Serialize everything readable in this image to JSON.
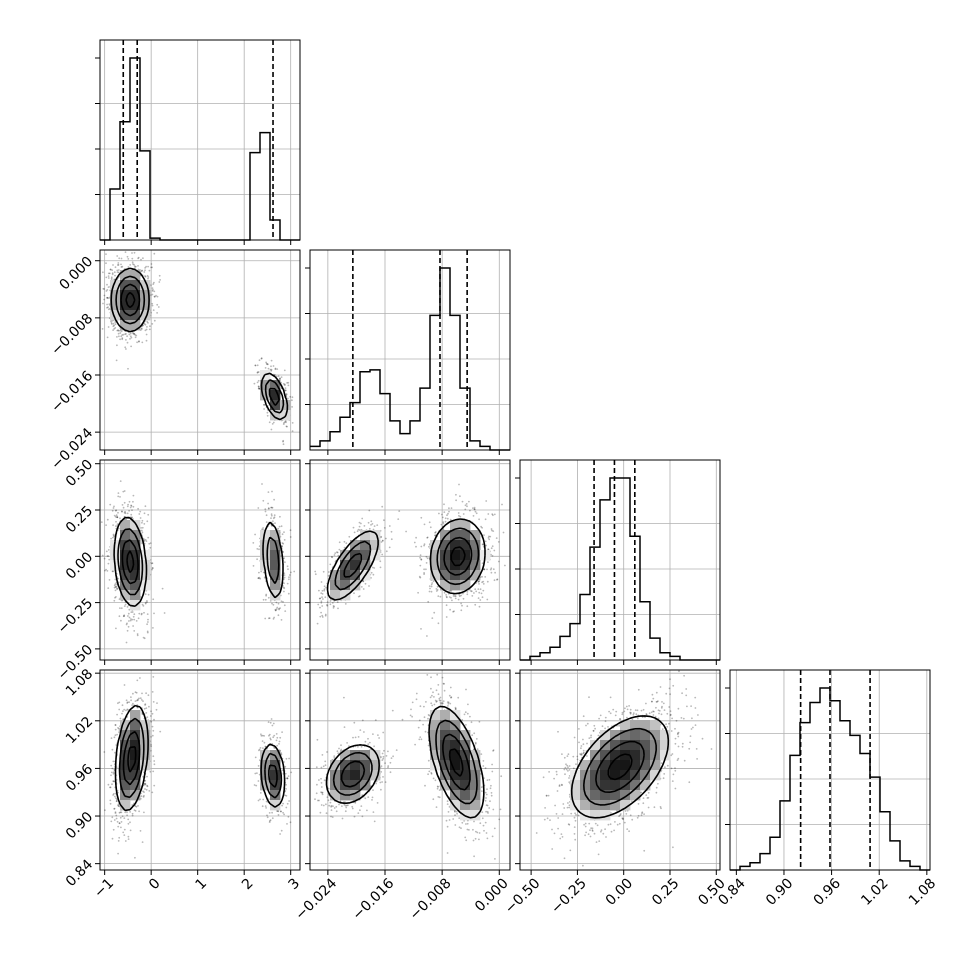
{
  "chart_data": {
    "type": "corner",
    "n_params": 4,
    "axes": [
      {
        "range": [
          -1.1,
          3.2
        ],
        "ticks": [
          -1,
          0,
          1,
          2,
          3
        ],
        "tick_labels": [
          "−1",
          "0",
          "1",
          "2",
          "3"
        ]
      },
      {
        "range": [
          -0.0265,
          0.0015
        ],
        "ticks": [
          -0.024,
          -0.016,
          -0.008,
          0.0
        ],
        "tick_labels": [
          "−0.024",
          "−0.016",
          "−0.008",
          "0.000"
        ]
      },
      {
        "range": [
          -0.56,
          0.52
        ],
        "ticks": [
          -0.5,
          -0.25,
          0.0,
          0.25,
          0.5
        ],
        "tick_labels": [
          "−0.50",
          "−0.25",
          "0.00",
          "0.25",
          "0.50"
        ]
      },
      {
        "range": [
          0.832,
          1.084
        ],
        "ticks": [
          0.84,
          0.9,
          0.96,
          1.02,
          1.08
        ],
        "tick_labels": [
          "0.84",
          "0.90",
          "0.96",
          "1.02",
          "1.08"
        ]
      }
    ],
    "histograms": [
      {
        "bin_start": -1.1,
        "bin_width": 0.215,
        "counts": [
          0.0,
          0.28,
          0.65,
          1.0,
          0.49,
          0.01,
          0,
          0,
          0,
          0,
          0,
          0,
          0,
          0,
          0,
          0.48,
          0.59,
          0.11,
          0.0,
          0.0
        ],
        "quantiles": [
          -0.6,
          -0.3,
          2.62
        ]
      },
      {
        "bin_start": -0.0265,
        "bin_width": 0.0014,
        "counts": [
          0.02,
          0.05,
          0.1,
          0.18,
          0.26,
          0.43,
          0.44,
          0.31,
          0.16,
          0.09,
          0.16,
          0.34,
          0.74,
          1.0,
          0.74,
          0.34,
          0.05,
          0.02,
          0.0,
          0.0
        ],
        "quantiles": [
          -0.0205,
          -0.0083,
          -0.0045
        ]
      },
      {
        "bin_start": -0.56,
        "bin_width": 0.054,
        "counts": [
          0.0,
          0.02,
          0.04,
          0.07,
          0.13,
          0.2,
          0.36,
          0.62,
          0.88,
          1.0,
          1.0,
          0.68,
          0.32,
          0.12,
          0.04,
          0.02,
          0.0,
          0.0,
          0.0,
          0.0
        ],
        "quantiles": [
          -0.16,
          -0.05,
          0.06
        ]
      },
      {
        "bin_start": 0.832,
        "bin_width": 0.0126,
        "counts": [
          0.0,
          0.02,
          0.04,
          0.09,
          0.18,
          0.38,
          0.63,
          0.81,
          0.92,
          1.0,
          0.93,
          0.82,
          0.74,
          0.64,
          0.51,
          0.32,
          0.16,
          0.05,
          0.02,
          0.0
        ],
        "quantiles": [
          0.921,
          0.958,
          1.0085
        ]
      }
    ],
    "pair_panels": [
      {
        "x": 0,
        "y": 1,
        "clusters": [
          {
            "cx": -0.45,
            "cy": -0.0055,
            "sx": 0.2,
            "sy": 0.0022,
            "rho": 0.0,
            "weight": 0.72
          },
          {
            "cx": 2.65,
            "cy": -0.019,
            "sx": 0.14,
            "sy": 0.0017,
            "rho": -0.5,
            "weight": 0.28
          }
        ]
      },
      {
        "x": 0,
        "y": 2,
        "clusters": [
          {
            "cx": -0.45,
            "cy": -0.03,
            "sx": 0.17,
            "sy": 0.12,
            "rho": -0.2,
            "weight": 0.72
          },
          {
            "cx": 2.62,
            "cy": -0.02,
            "sx": 0.12,
            "sy": 0.12,
            "rho": -0.3,
            "weight": 0.28
          }
        ]
      },
      {
        "x": 0,
        "y": 3,
        "clusters": [
          {
            "cx": -0.42,
            "cy": 0.973,
            "sx": 0.17,
            "sy": 0.033,
            "rho": 0.3,
            "weight": 0.72
          },
          {
            "cx": 2.62,
            "cy": 0.951,
            "sx": 0.13,
            "sy": 0.021,
            "rho": -0.2,
            "weight": 0.28
          }
        ]
      },
      {
        "x": 1,
        "y": 2,
        "clusters": [
          {
            "cx": -0.0205,
            "cy": -0.05,
            "sx": 0.0019,
            "sy": 0.1,
            "rho": 0.7,
            "weight": 0.35
          },
          {
            "cx": -0.0058,
            "cy": 0.0,
            "sx": 0.0019,
            "sy": 0.1,
            "rho": 0.1,
            "weight": 0.65
          }
        ]
      },
      {
        "x": 1,
        "y": 3,
        "clusters": [
          {
            "cx": -0.0205,
            "cy": 0.953,
            "sx": 0.0019,
            "sy": 0.019,
            "rho": 0.3,
            "weight": 0.35
          },
          {
            "cx": -0.006,
            "cy": 0.968,
            "sx": 0.0019,
            "sy": 0.035,
            "rho": -0.55,
            "weight": 0.65
          }
        ]
      },
      {
        "x": 2,
        "y": 3,
        "clusters": [
          {
            "cx": -0.02,
            "cy": 0.962,
            "sx": 0.13,
            "sy": 0.032,
            "rho": 0.5,
            "weight": 1.0
          }
        ]
      }
    ],
    "contour_levels_sigma": [
      0.5,
      1.0,
      1.5,
      2.0
    ],
    "scatter_points_per_panel": 1500
  }
}
